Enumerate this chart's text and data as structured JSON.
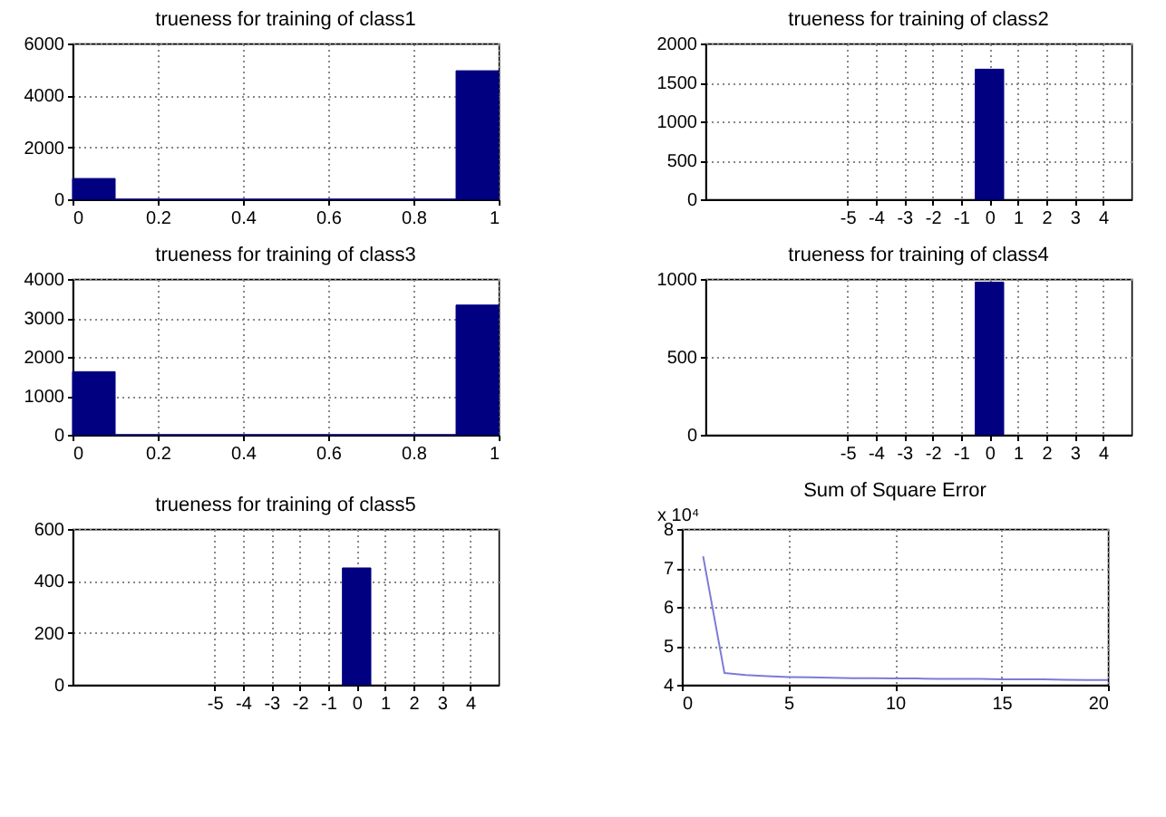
{
  "chart_data": [
    {
      "type": "histogram",
      "title": "trueness for training of class1",
      "bins": [
        0,
        0.1,
        0.2,
        0.3,
        0.4,
        0.5,
        0.6,
        0.7,
        0.8,
        0.9,
        1
      ],
      "values": [
        800,
        0,
        0,
        0,
        0,
        0,
        0,
        0,
        0,
        4950
      ],
      "color": "#000080",
      "xlim": [
        0,
        1
      ],
      "xticks": [
        0,
        0.2,
        0.4,
        0.6,
        0.8,
        1
      ],
      "ylim": [
        0,
        6000
      ],
      "yticks": [
        0,
        2000,
        4000,
        6000
      ],
      "grid": true
    },
    {
      "type": "histogram",
      "title": "trueness for training of class2",
      "bins": [
        -0.5,
        0.5
      ],
      "values": [
        1670
      ],
      "color": "#000080",
      "xlim": [
        -10,
        5
      ],
      "xticks": [
        -5,
        -4,
        -3,
        -2,
        -1,
        0,
        1,
        2,
        3,
        4
      ],
      "ylim": [
        0,
        2000
      ],
      "yticks": [
        0,
        500,
        1000,
        1500,
        2000
      ],
      "grid": true
    },
    {
      "type": "histogram",
      "title": "trueness for training of class3",
      "bins": [
        0,
        0.1,
        0.2,
        0.3,
        0.4,
        0.5,
        0.6,
        0.7,
        0.8,
        0.9,
        1
      ],
      "values": [
        1620,
        0,
        0,
        0,
        0,
        0,
        0,
        0,
        0,
        3330
      ],
      "color": "#000080",
      "xlim": [
        0,
        1
      ],
      "xticks": [
        0,
        0.2,
        0.4,
        0.6,
        0.8,
        1
      ],
      "ylim": [
        0,
        4000
      ],
      "yticks": [
        0,
        1000,
        2000,
        3000,
        4000
      ],
      "grid": true
    },
    {
      "type": "histogram",
      "title": "trueness for training of class4",
      "bins": [
        -0.5,
        0.5
      ],
      "values": [
        980
      ],
      "color": "#000080",
      "xlim": [
        -10,
        5
      ],
      "xticks": [
        -5,
        -4,
        -3,
        -2,
        -1,
        0,
        1,
        2,
        3,
        4
      ],
      "ylim": [
        0,
        1000
      ],
      "yticks": [
        0,
        500,
        1000
      ],
      "grid": true
    },
    {
      "type": "histogram",
      "title": "trueness for training of class5",
      "bins": [
        -0.5,
        0.5
      ],
      "values": [
        450
      ],
      "color": "#000080",
      "xlim": [
        -10,
        5
      ],
      "xticks": [
        -5,
        -4,
        -3,
        -2,
        -1,
        0,
        1,
        2,
        3,
        4
      ],
      "ylim": [
        0,
        600
      ],
      "yticks": [
        0,
        200,
        400,
        600
      ],
      "grid": true
    },
    {
      "type": "line",
      "title": "Sum of Square Error",
      "annotations": [
        "x 10⁴"
      ],
      "x": [
        1,
        2,
        3,
        4,
        5,
        6,
        7,
        8,
        9,
        10,
        11,
        12,
        13,
        14,
        15,
        16,
        17,
        18,
        19,
        20
      ],
      "values": [
        7.3,
        4.3,
        4.25,
        4.22,
        4.2,
        4.19,
        4.18,
        4.17,
        4.17,
        4.16,
        4.16,
        4.15,
        4.15,
        4.15,
        4.14,
        4.14,
        4.14,
        4.13,
        4.12,
        4.12
      ],
      "color": "#7b7bd9",
      "xlim": [
        0,
        20
      ],
      "xticks": [
        0,
        5,
        10,
        15,
        20
      ],
      "ylim": [
        4,
        8
      ],
      "yticks": [
        4,
        5,
        6,
        7,
        8
      ],
      "grid": true
    }
  ]
}
